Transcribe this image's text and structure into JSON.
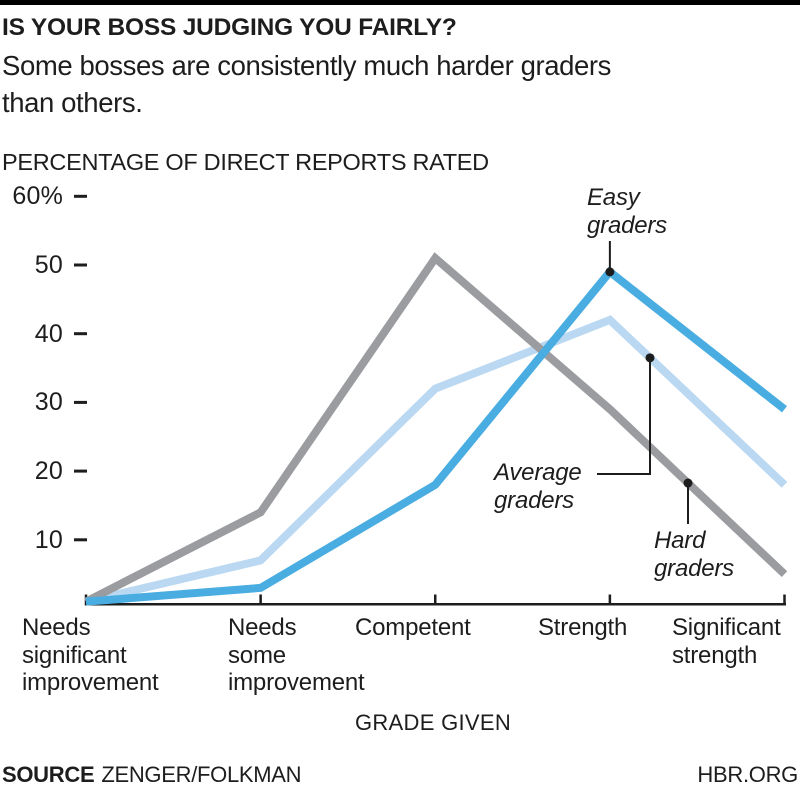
{
  "page": {
    "title": "IS YOUR BOSS JUDGING YOU FAIRLY?",
    "subtitle_lines": [
      "Some bosses are consistently much harder graders",
      "than others."
    ],
    "footer": {
      "source_label": "SOURCE",
      "source_value": "ZENGER/FOLKMAN",
      "site": "HBR.ORG"
    }
  },
  "colors": {
    "ink": "#1d1d1d",
    "top_bar": "#000000",
    "easy_blue": "#4aade1",
    "average_light_blue": "#bad8f1",
    "hard_gray": "#9a9c9f"
  },
  "chart_data": {
    "type": "line",
    "title": "IS YOUR BOSS JUDGING YOU FAIRLY?",
    "subtitle": "Some bosses are consistently much harder graders than others.",
    "axis_title": "PERCENTAGE OF DIRECT REPORTS RATED",
    "xlabel": "GRADE GIVEN",
    "ylabel": "",
    "ylim": [
      0,
      60
    ],
    "grid": false,
    "legend_position": "inline-annotations",
    "categories": [
      "Needs significant improvement",
      "Needs some improvement",
      "Competent",
      "Strength",
      "Significant strength"
    ],
    "category_label_lines": [
      [
        "Needs",
        "significant",
        "improvement"
      ],
      [
        "Needs",
        "some",
        "improvement"
      ],
      [
        "Competent"
      ],
      [
        "Strength"
      ],
      [
        "Significant",
        "strength"
      ]
    ],
    "y_ticks": [
      {
        "label": "60%",
        "value": 60
      },
      {
        "label": "50",
        "value": 50
      },
      {
        "label": "40",
        "value": 40
      },
      {
        "label": "30",
        "value": 30
      },
      {
        "label": "20",
        "value": 20
      },
      {
        "label": "10",
        "value": 10
      }
    ],
    "series": [
      {
        "name": "Hard graders",
        "color": "#9a9c9f",
        "values": [
          1,
          14,
          51,
          29,
          5
        ]
      },
      {
        "name": "Average graders",
        "color": "#bad8f1",
        "values": [
          1,
          7,
          32,
          42,
          18
        ]
      },
      {
        "name": "Easy graders",
        "color": "#4aade1",
        "values": [
          1,
          3,
          18,
          49,
          29
        ]
      }
    ],
    "annotations": [
      {
        "key": "easy",
        "series": "Easy graders",
        "label_lines": [
          "Easy",
          "graders"
        ]
      },
      {
        "key": "average",
        "series": "Average graders",
        "label_lines": [
          "Average",
          "graders"
        ]
      },
      {
        "key": "hard",
        "series": "Hard graders",
        "label_lines": [
          "Hard",
          "graders"
        ]
      }
    ]
  }
}
